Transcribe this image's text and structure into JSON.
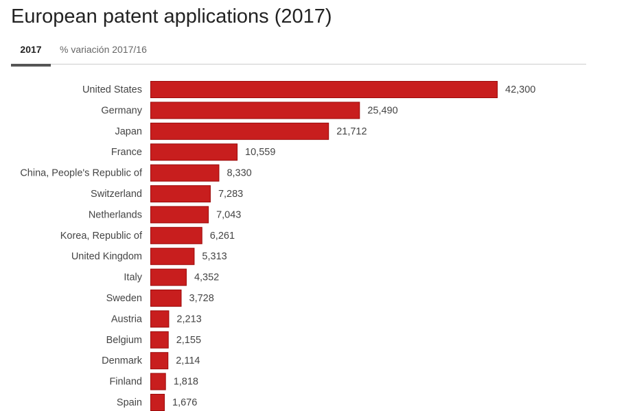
{
  "title": "European patent applications (2017)",
  "tabs": [
    {
      "label": "2017",
      "active": true
    },
    {
      "label": "% variación 2017/16",
      "active": false
    }
  ],
  "colors": {
    "bar_fill": "#c81e1e",
    "bar_border": "#9b0a0a"
  },
  "chart_data": {
    "type": "bar",
    "orientation": "horizontal",
    "title": "European patent applications (2017)",
    "categories": [
      "United States",
      "Germany",
      "Japan",
      "France",
      "China, People's Republic of",
      "Switzerland",
      "Netherlands",
      "Korea, Republic of",
      "United Kingdom",
      "Italy",
      "Sweden",
      "Austria",
      "Belgium",
      "Denmark",
      "Finland",
      "Spain"
    ],
    "values": [
      42300,
      25490,
      21712,
      10559,
      8330,
      7283,
      7043,
      6261,
      5313,
      4352,
      3728,
      2213,
      2155,
      2114,
      1818,
      1676
    ],
    "value_labels": [
      "42,300",
      "25,490",
      "21,712",
      "10,559",
      "8,330",
      "7,283",
      "7,043",
      "6,261",
      "5,313",
      "4,352",
      "3,728",
      "2,213",
      "2,155",
      "2,114",
      "1,818",
      "1,676"
    ],
    "grid": false,
    "legend": "none"
  }
}
